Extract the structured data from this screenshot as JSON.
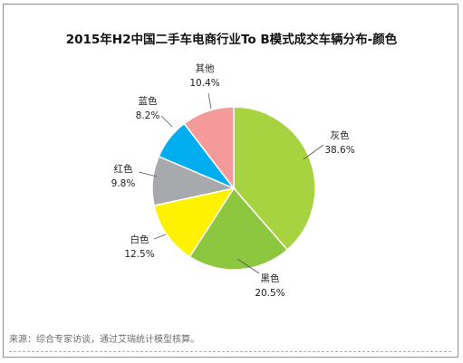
{
  "chart_data": {
    "type": "pie",
    "title": "2015年H2中国二手车电商行业To B模式成交车辆分布-颜色",
    "categories": [
      "灰色",
      "黑色",
      "白色",
      "红色",
      "蓝色",
      "其他"
    ],
    "values": [
      38.6,
      20.5,
      12.5,
      9.8,
      8.2,
      10.4
    ],
    "value_labels": [
      "38.6%",
      "20.5%",
      "12.5%",
      "9.8%",
      "8.2%",
      "10.4%"
    ],
    "colors": [
      "#a8d340",
      "#8dc63f",
      "#fff200",
      "#a7a9ac",
      "#00aeef",
      "#f49a9a"
    ],
    "legend": "none"
  },
  "source": "来源：综合专家访谈，通过艾瑞统计模型核算。"
}
